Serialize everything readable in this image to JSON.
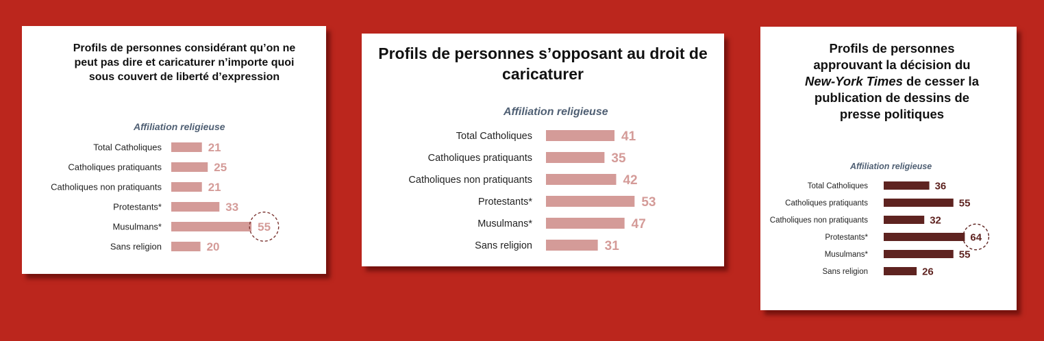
{
  "chart_data": [
    {
      "type": "bar",
      "title": "Profils de personnes considérant qu’on ne peut pas dire et caricaturer n’importe quoi sous couvert de liberté d’expression",
      "subtitle": "Affiliation religieuse",
      "categories": [
        "Total Catholiques",
        "Catholiques pratiquants",
        "Catholiques non pratiquants",
        "Protestants*",
        "Musulmans*",
        "Sans religion"
      ],
      "values": [
        21,
        25,
        21,
        33,
        55,
        20
      ],
      "highlight": "Musulmans*",
      "bar_color": "#d49b98",
      "label_color": "#d49b98"
    },
    {
      "type": "bar",
      "title": "Profils de personnes s’opposant au droit de caricaturer",
      "subtitle": "Affiliation religieuse",
      "categories": [
        "Total Catholiques",
        "Catholiques pratiquants",
        "Catholiques non pratiquants",
        "Protestants*",
        "Musulmans*",
        "Sans religion"
      ],
      "values": [
        41,
        35,
        42,
        53,
        47,
        31
      ],
      "bar_color": "#d49b98",
      "label_color": "#d49b98"
    },
    {
      "type": "bar",
      "title_lines": [
        [
          {
            "t": "Profils de personnes"
          }
        ],
        [
          {
            "t": "approuvant la décision du"
          }
        ],
        [
          {
            "t": "New-York Times",
            "i": true
          },
          {
            "t": " de cesser la"
          }
        ],
        [
          {
            "t": "publication de dessins de"
          }
        ],
        [
          {
            "t": "presse politiques"
          }
        ]
      ],
      "subtitle": "Affiliation religieuse",
      "categories": [
        "Total Catholiques",
        "Catholiques pratiquants",
        "Catholiques non pratiquants",
        "Protestants*",
        "Musulmans*",
        "Sans religion"
      ],
      "values": [
        36,
        55,
        32,
        64,
        55,
        26
      ],
      "highlight": "Protestants*",
      "bar_color": "#5e2320",
      "label_color": "#5e2320"
    }
  ]
}
